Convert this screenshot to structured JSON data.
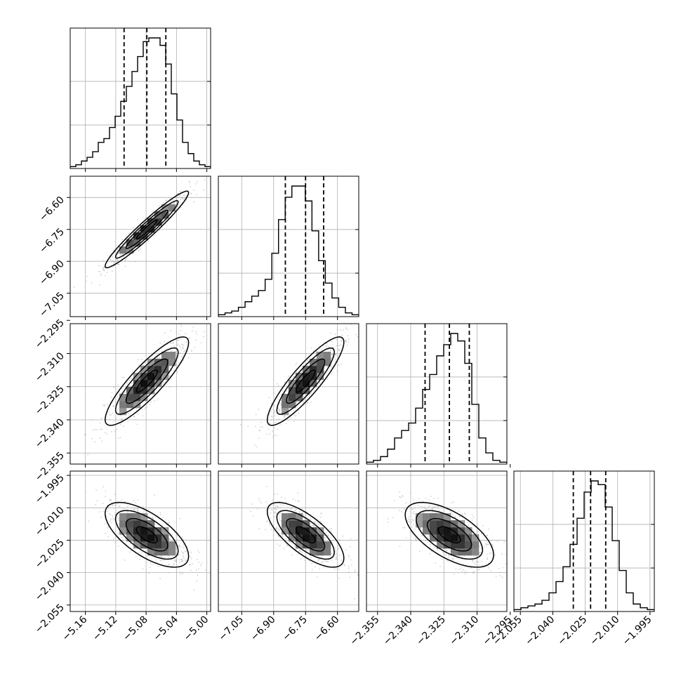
{
  "chart_data": {
    "type": "corner",
    "parameters": [
      {
        "name": "",
        "range": [
          -5.18,
          -4.995
        ],
        "ticks": [
          -5.16,
          -5.12,
          -5.08,
          -5.04,
          -5.0
        ],
        "tick_labels": [
          "−5.16",
          "−5.12",
          "−5.08",
          "−5.04",
          "−5.00"
        ],
        "quantiles": [
          -5.109,
          -5.079,
          -5.054
        ],
        "histogram": [
          1,
          2,
          4,
          6,
          9,
          14,
          16,
          22,
          28,
          36,
          44,
          52,
          60,
          68,
          70,
          70,
          66,
          56,
          40,
          26,
          14,
          8,
          4,
          2,
          1
        ]
      },
      {
        "name": "",
        "range": [
          -7.16,
          -6.5
        ],
        "ticks": [
          -7.05,
          -6.9,
          -6.75,
          -6.6
        ],
        "tick_labels": [
          "−7.05",
          "−6.90",
          "−6.75",
          "−6.60"
        ],
        "quantiles": [
          -6.845,
          -6.75,
          -6.665
        ],
        "histogram": [
          1,
          2,
          3,
          5,
          8,
          11,
          14,
          20,
          34,
          52,
          64,
          70,
          70,
          62,
          46,
          30,
          18,
          10,
          5,
          2,
          1
        ]
      },
      {
        "name": "",
        "range": [
          -2.36,
          -2.2965
        ],
        "ticks": [
          -2.355,
          -2.34,
          -2.325,
          -2.31,
          -2.295
        ],
        "tick_labels": [
          "−2.355",
          "−2.340",
          "−2.325",
          "−2.310",
          "−2.295"
        ],
        "quantiles": [
          -2.3335,
          -2.3225,
          -2.3135
        ],
        "histogram": [
          1,
          2,
          4,
          8,
          14,
          18,
          22,
          30,
          40,
          48,
          58,
          64,
          70,
          66,
          54,
          32,
          14,
          6,
          2,
          1
        ]
      },
      {
        "name": "",
        "range": [
          -2.058,
          -1.993
        ],
        "ticks": [
          -2.055,
          -2.04,
          -2.025,
          -2.01,
          -1.995
        ],
        "tick_labels": [
          "−2.055",
          "−2.040",
          "−2.025",
          "−2.010",
          "−1.995"
        ],
        "quantiles": [
          -2.0305,
          -2.0225,
          -2.0155
        ],
        "histogram": [
          1,
          2,
          3,
          4,
          6,
          10,
          16,
          24,
          36,
          50,
          64,
          70,
          68,
          56,
          38,
          22,
          10,
          4,
          2,
          1
        ]
      }
    ],
    "correlations": [
      {
        "row": 1,
        "col": 0,
        "r": 0.96
      },
      {
        "row": 2,
        "col": 0,
        "r": 0.87
      },
      {
        "row": 2,
        "col": 1,
        "r": 0.88
      },
      {
        "row": 3,
        "col": 0,
        "r": -0.66
      },
      {
        "row": 3,
        "col": 1,
        "r": -0.72
      },
      {
        "row": 3,
        "col": 2,
        "r": -0.62
      }
    ],
    "contour_levels": [
      0.5,
      1.0,
      1.5,
      2.0
    ],
    "grid": true,
    "colors": {
      "line": "#000000",
      "grid": "#b0b0b0",
      "scatter": "#9e9e9e",
      "density_dark": "#000000"
    }
  }
}
